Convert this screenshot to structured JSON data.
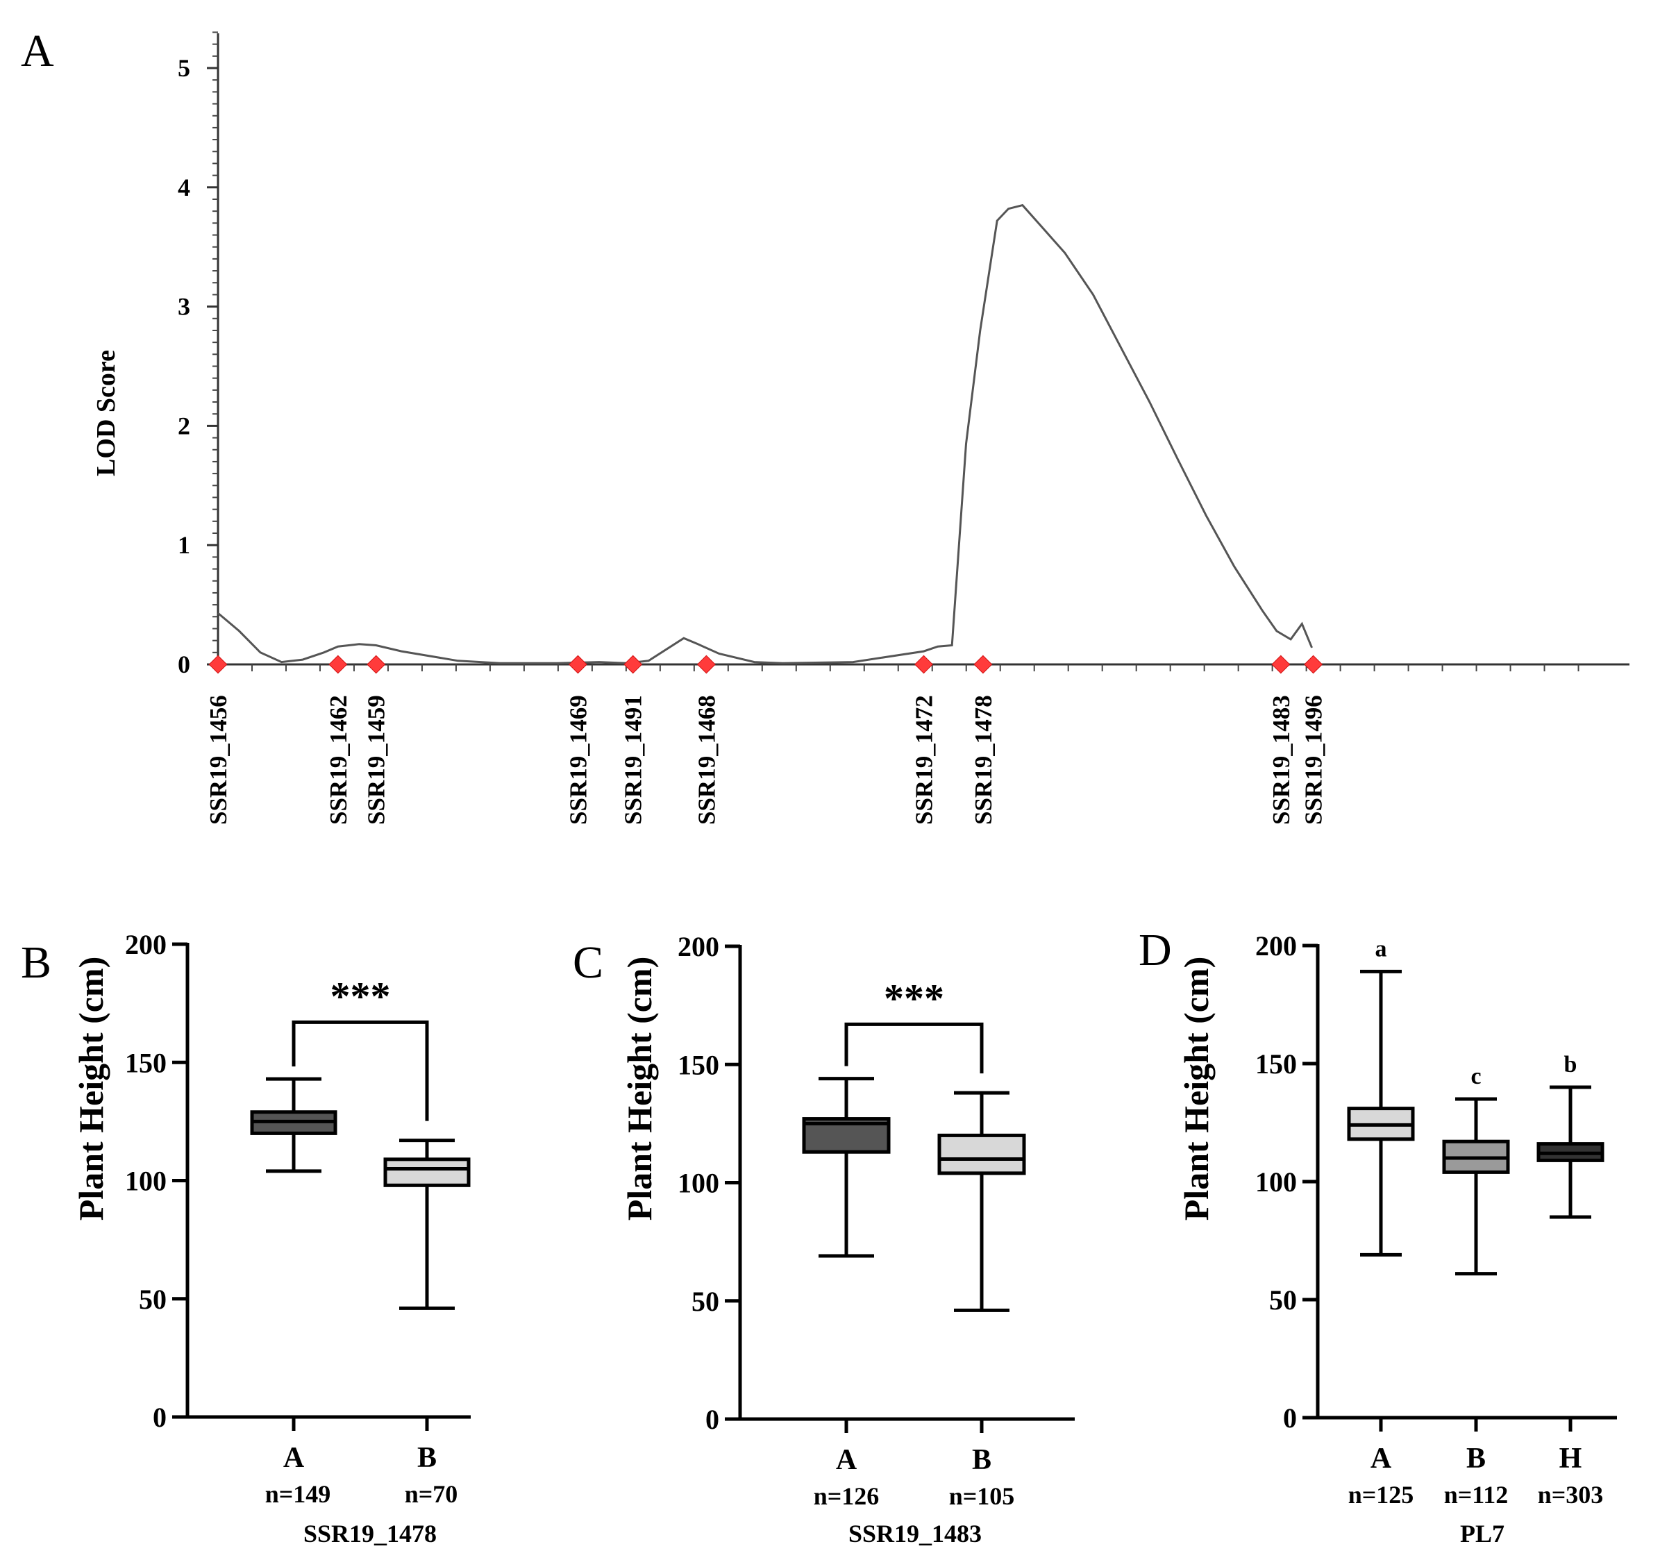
{
  "chart_data": [
    {
      "panel": "A",
      "type": "line",
      "ylabel": "LOD Score",
      "ylim": [
        0,
        5.3
      ],
      "yticks": [
        "0",
        "1",
        "2",
        "3",
        "4",
        "5"
      ],
      "xlim": [
        0,
        100
      ],
      "series": [
        {
          "name": "LOD",
          "x": [
            0,
            1.5,
            3.0,
            4.5,
            6.0,
            7.5,
            8.5,
            10.0,
            11.2,
            13.0,
            17.0,
            20.0,
            24.0,
            27.0,
            29.0,
            30.5,
            33.0,
            34.0,
            35.5,
            38.0,
            40.0,
            45.0,
            50.0,
            51.0,
            52.0,
            53.0,
            54.0,
            55.2,
            56.0,
            57.0,
            58.5,
            60.0,
            62.0,
            64.0,
            66.0,
            68.0,
            70.0,
            72.0,
            74.0,
            75.0,
            76.0,
            76.8,
            77.5
          ],
          "y": [
            0.43,
            0.28,
            0.1,
            0.02,
            0.04,
            0.1,
            0.15,
            0.17,
            0.16,
            0.11,
            0.03,
            0.01,
            0.01,
            0.02,
            0.01,
            0.03,
            0.22,
            0.17,
            0.09,
            0.02,
            0.01,
            0.02,
            0.11,
            0.15,
            0.16,
            1.85,
            2.8,
            3.72,
            3.82,
            3.85,
            3.65,
            3.45,
            3.1,
            2.65,
            2.2,
            1.72,
            1.25,
            0.82,
            0.45,
            0.28,
            0.21,
            0.34,
            0.14
          ]
        }
      ],
      "markers": [
        {
          "label": "SSR19_1456",
          "x": 0.0
        },
        {
          "label": "SSR19_1462",
          "x": 8.5
        },
        {
          "label": "SSR19_1459",
          "x": 11.2
        },
        {
          "label": "SSR19_1469",
          "x": 25.5
        },
        {
          "label": "SSR19_1491",
          "x": 29.4
        },
        {
          "label": "SSR19_1468",
          "x": 34.6
        },
        {
          "label": "SSR19_1472",
          "x": 50.0
        },
        {
          "label": "SSR19_1478",
          "x": 54.2
        },
        {
          "label": "SSR19_1483",
          "x": 75.3
        },
        {
          "label": "SSR19_1496",
          "x": 77.6
        }
      ]
    },
    {
      "panel": "B",
      "type": "box",
      "ylabel": "Plant Height (cm)",
      "ylim": [
        0,
        200
      ],
      "yticks": [
        "0",
        "50",
        "100",
        "150",
        "200"
      ],
      "xtitle": "SSR19_1478",
      "groups": [
        {
          "label": "A",
          "n": "n=149",
          "min": 104,
          "q1": 120,
          "median": 125,
          "q3": 129,
          "max": 143,
          "fill": "#555555"
        },
        {
          "label": "B",
          "n": "n=70",
          "min": 46,
          "q1": 98,
          "median": 105,
          "q3": 109,
          "max": 117,
          "fill": "#d8d8d8"
        }
      ],
      "significance": "***",
      "bracket_height": 167
    },
    {
      "panel": "C",
      "type": "box",
      "ylabel": "Plant Height (cm)",
      "ylim": [
        0,
        200
      ],
      "yticks": [
        "0",
        "50",
        "100",
        "150",
        "200"
      ],
      "xtitle": "SSR19_1483",
      "groups": [
        {
          "label": "A",
          "n": "n=126",
          "min": 69,
          "q1": 113,
          "median": 125,
          "q3": 127,
          "max": 144,
          "fill": "#555555"
        },
        {
          "label": "B",
          "n": "n=105",
          "min": 46,
          "q1": 104,
          "median": 110,
          "q3": 120,
          "max": 138,
          "fill": "#d8d8d8"
        }
      ],
      "significance": "***",
      "bracket_height": 167
    },
    {
      "panel": "D",
      "type": "box",
      "ylabel": "Plant Height (cm)",
      "ylim": [
        0,
        200
      ],
      "yticks": [
        "0",
        "50",
        "100",
        "150",
        "200"
      ],
      "xtitle": "PL7",
      "groups": [
        {
          "label": "A",
          "n": "n=125",
          "min": 69,
          "q1": 118,
          "median": 124,
          "q3": 131,
          "max": 189,
          "fill": "#d8d8d8",
          "letter": "a"
        },
        {
          "label": "B",
          "n": "n=112",
          "min": 61,
          "q1": 104,
          "median": 110,
          "q3": 117,
          "max": 135,
          "fill": "#9a9a9a",
          "letter": "c"
        },
        {
          "label": "H",
          "n": "n=303",
          "min": 85,
          "q1": 109,
          "median": 112,
          "q3": 116,
          "max": 140,
          "fill": "#333333",
          "letter": "b"
        }
      ]
    }
  ]
}
